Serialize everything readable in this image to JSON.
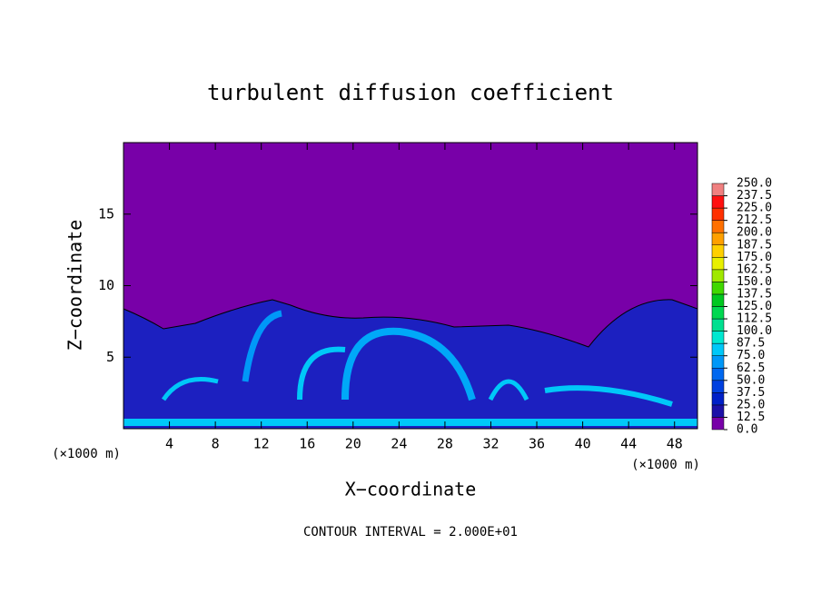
{
  "chart_data": {
    "type": "contour",
    "title": "turbulent diffusion coefficient",
    "x_label": "X−coordinate",
    "y_label": "Z−coordinate",
    "x_unit_label": "(×1000 m)",
    "x_unit_label_right": "(×1000 m)",
    "annotation": "CONTOUR INTERVAL = 2.000E+01",
    "xlim": [
      0,
      50
    ],
    "ylim": [
      0,
      20
    ],
    "xticks": [
      4,
      8,
      12,
      16,
      20,
      24,
      28,
      32,
      36,
      40,
      44,
      48
    ],
    "yticks": [
      5,
      10,
      15
    ],
    "colorbar": {
      "levels": [
        {
          "value": 0,
          "label": "0.0"
        },
        {
          "value": 12.5,
          "label": "12.5"
        },
        {
          "value": 25,
          "label": "25.0"
        },
        {
          "value": 37.5,
          "label": "37.5"
        },
        {
          "value": 50,
          "label": "50.0"
        },
        {
          "value": 62.5,
          "label": "62.5"
        },
        {
          "value": 75,
          "label": "75.0"
        },
        {
          "value": 87.5,
          "label": "87.5"
        },
        {
          "value": 100,
          "label": "100.0"
        },
        {
          "value": 112.5,
          "label": "112.5"
        },
        {
          "value": 125,
          "label": "125.0"
        },
        {
          "value": 137.5,
          "label": "137.5"
        },
        {
          "value": 150,
          "label": "150.0"
        },
        {
          "value": 162.5,
          "label": "162.5"
        },
        {
          "value": 175,
          "label": "175.0"
        },
        {
          "value": 187.5,
          "label": "187.5"
        },
        {
          "value": 200,
          "label": "200.0"
        },
        {
          "value": 212.5,
          "label": "212.5"
        },
        {
          "value": 225,
          "label": "225.0"
        },
        {
          "value": 237.5,
          "label": "237.5"
        },
        {
          "value": 250,
          "label": "250.0"
        }
      ],
      "colors": [
        "#7800a8",
        "#1c10a8",
        "#0020c8",
        "#0040e0",
        "#0068f0",
        "#0098f8",
        "#00c8f8",
        "#00e8d0",
        "#00e090",
        "#00d850",
        "#00c820",
        "#40d800",
        "#a0e800",
        "#e8f000",
        "#ffd000",
        "#ffa000",
        "#ff7000",
        "#ff3000",
        "#ff1010",
        "#f08080"
      ]
    }
  }
}
